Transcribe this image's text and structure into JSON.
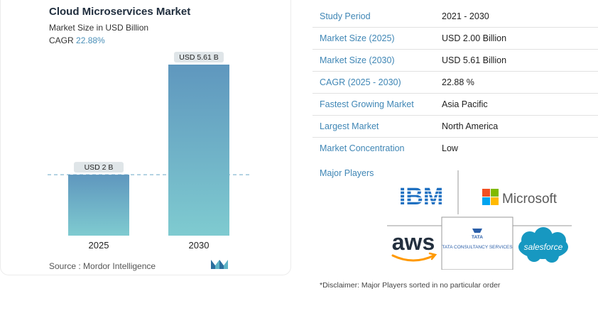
{
  "header": {
    "title": "Cloud Microservices Market",
    "subtitle": "Market Size in USD Billion",
    "cagr_label": "CAGR",
    "cagr_value": "22.88%"
  },
  "chart_data": {
    "type": "bar",
    "categories": [
      "2025",
      "2030"
    ],
    "values": [
      2.0,
      5.61
    ],
    "data_labels": [
      "USD 2 B",
      "USD 5.61 B"
    ],
    "title": "Cloud Microservices Market",
    "ylabel": "Market Size in USD Billion",
    "ylim": [
      0,
      5.61
    ],
    "colors": {
      "bar_top": "#5f97be",
      "bar_bottom": "#7fcbd0",
      "label_bg": "#dfe5e8",
      "reference_line": "#6aa7c7"
    },
    "reference_line": true,
    "grid": false
  },
  "footer": {
    "source": "Source :  Mordor Intelligence"
  },
  "table": {
    "rows": [
      {
        "key": "Study Period",
        "value": "2021 - 2030"
      },
      {
        "key": "Market Size (2025)",
        "value": "USD 2.00 Billion"
      },
      {
        "key": "Market Size (2030)",
        "value": "USD 5.61 Billion"
      },
      {
        "key": "CAGR (2025 - 2030)",
        "value": "22.88 %"
      },
      {
        "key": "Fastest Growing Market",
        "value": "Asia Pacific"
      },
      {
        "key": "Largest Market",
        "value": "North America"
      },
      {
        "key": "Market Concentration",
        "value": "Low"
      }
    ]
  },
  "players": {
    "label": "Major Players",
    "logos": {
      "ibm": "IBM",
      "microsoft": "Microsoft",
      "aws": "aws",
      "tata": "TATA",
      "tcs": "TATA CONSULTANCY SERVICES",
      "salesforce": "salesforce"
    }
  },
  "disclaimer": "*Disclaimer: Major Players sorted in no particular order",
  "colors": {
    "accent": "#3f86b5",
    "ms_red": "#f25022",
    "ms_green": "#7fba00",
    "ms_blue": "#00a4ef",
    "ms_yellow": "#ffb900",
    "aws_orange": "#ff9900",
    "sf_blue": "#1798c1",
    "ibm_blue": "#1f70c1"
  }
}
